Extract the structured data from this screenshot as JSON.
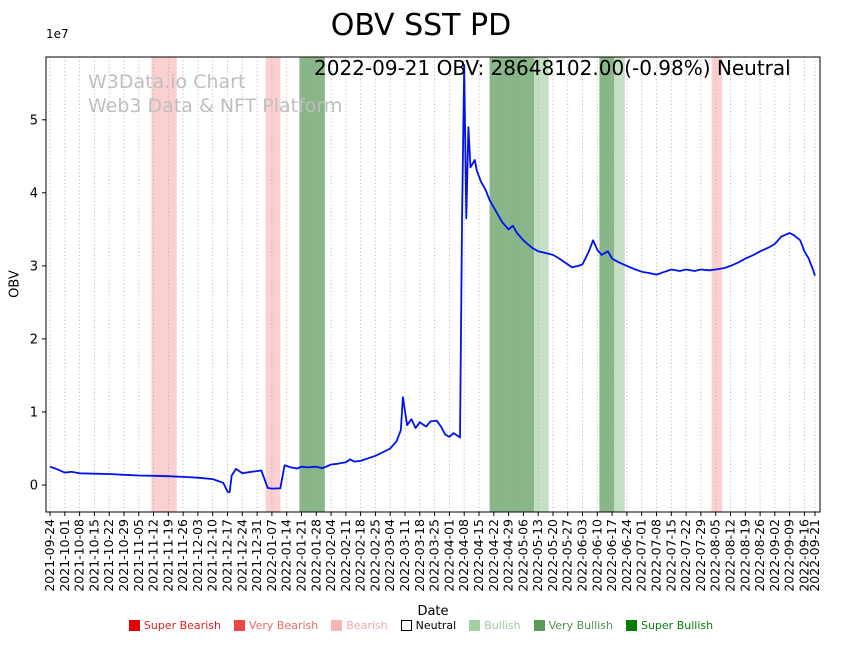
{
  "title": "OBV SST PD",
  "annotation": "2022-09-21 OBV: 28648102.00(-0.98%) Neutral",
  "watermark": {
    "line1": "W3Data.io Chart",
    "line2": "Web3 Data & NFT Platform"
  },
  "axes": {
    "y_label": "OBV",
    "x_label": "Date",
    "y_offset_label": "1e7"
  },
  "chart_data": {
    "type": "line",
    "title": "OBV SST PD",
    "xlabel": "Date",
    "ylabel": "OBV",
    "line_color": "#0013ee",
    "grid": "vertical-dotted",
    "legend_position": "bottom",
    "ylim": [
      -3700000,
      58600000
    ],
    "x_range": [
      "2021-09-24",
      "2022-09-21"
    ],
    "yticks": {
      "values": [
        0,
        10000000,
        20000000,
        30000000,
        40000000,
        50000000
      ],
      "labels": [
        "0",
        "1",
        "2",
        "3",
        "4",
        "5"
      ],
      "offset": "1e7"
    },
    "x_tick_dates": [
      "2021-09-24",
      "2021-10-01",
      "2021-10-08",
      "2021-10-15",
      "2021-10-22",
      "2021-10-29",
      "2021-11-05",
      "2021-11-12",
      "2021-11-19",
      "2021-11-26",
      "2021-12-03",
      "2021-12-10",
      "2021-12-17",
      "2021-12-24",
      "2021-12-31",
      "2022-01-07",
      "2022-01-14",
      "2022-01-21",
      "2022-01-28",
      "2022-02-04",
      "2022-02-11",
      "2022-02-18",
      "2022-02-25",
      "2022-03-04",
      "2022-03-11",
      "2022-03-18",
      "2022-03-25",
      "2022-04-01",
      "2022-04-08",
      "2022-04-15",
      "2022-04-22",
      "2022-04-29",
      "2022-05-06",
      "2022-05-13",
      "2022-05-20",
      "2022-05-27",
      "2022-06-03",
      "2022-06-10",
      "2022-06-17",
      "2022-06-24",
      "2022-07-01",
      "2022-07-08",
      "2022-07-15",
      "2022-07-22",
      "2022-07-29",
      "2022-08-05",
      "2022-08-12",
      "2022-08-19",
      "2022-08-26",
      "2022-09-02",
      "2022-09-09",
      "2022-09-16",
      "2022-09-21"
    ],
    "bands": [
      {
        "start": "2021-11-11",
        "end": "2021-11-23",
        "level": "bearish"
      },
      {
        "start": "2022-01-04",
        "end": "2022-01-11",
        "level": "bearish"
      },
      {
        "start": "2022-01-20",
        "end": "2022-02-01",
        "level": "very_bullish"
      },
      {
        "start": "2022-04-20",
        "end": "2022-05-11",
        "level": "very_bullish"
      },
      {
        "start": "2022-05-11",
        "end": "2022-05-18",
        "level": "bullish"
      },
      {
        "start": "2022-06-11",
        "end": "2022-06-18",
        "level": "very_bullish"
      },
      {
        "start": "2022-06-18",
        "end": "2022-06-23",
        "level": "bullish"
      },
      {
        "start": "2022-08-03",
        "end": "2022-08-08",
        "level": "bearish"
      }
    ],
    "band_colors": {
      "bearish": "rgba(247,150,153,0.45)",
      "bullish": "rgba(125,184,125,0.45)",
      "very_bullish": "rgba(38,122,38,0.55)"
    },
    "series": [
      {
        "name": "OBV",
        "points": [
          [
            "2021-09-24",
            2500000
          ],
          [
            "2021-09-27",
            2200000
          ],
          [
            "2021-10-01",
            1700000
          ],
          [
            "2021-10-04",
            1800000
          ],
          [
            "2021-10-08",
            1600000
          ],
          [
            "2021-10-15",
            1550000
          ],
          [
            "2021-10-22",
            1500000
          ],
          [
            "2021-10-29",
            1400000
          ],
          [
            "2021-11-05",
            1300000
          ],
          [
            "2021-11-12",
            1250000
          ],
          [
            "2021-11-19",
            1200000
          ],
          [
            "2021-11-26",
            1100000
          ],
          [
            "2021-12-03",
            1000000
          ],
          [
            "2021-12-10",
            800000
          ],
          [
            "2021-12-15",
            300000
          ],
          [
            "2021-12-17",
            -900000
          ],
          [
            "2021-12-18",
            -1000000
          ],
          [
            "2021-12-19",
            1300000
          ],
          [
            "2021-12-21",
            2200000
          ],
          [
            "2021-12-24",
            1600000
          ],
          [
            "2021-12-27",
            1750000
          ],
          [
            "2021-12-31",
            1900000
          ],
          [
            "2022-01-02",
            2000000
          ],
          [
            "2022-01-05",
            -400000
          ],
          [
            "2022-01-07",
            -500000
          ],
          [
            "2022-01-11",
            -450000
          ],
          [
            "2022-01-13",
            2700000
          ],
          [
            "2022-01-16",
            2400000
          ],
          [
            "2022-01-19",
            2250000
          ],
          [
            "2022-01-21",
            2500000
          ],
          [
            "2022-01-24",
            2400000
          ],
          [
            "2022-01-28",
            2500000
          ],
          [
            "2022-01-31",
            2300000
          ],
          [
            "2022-02-04",
            2800000
          ],
          [
            "2022-02-07",
            2900000
          ],
          [
            "2022-02-11",
            3100000
          ],
          [
            "2022-02-13",
            3500000
          ],
          [
            "2022-02-15",
            3200000
          ],
          [
            "2022-02-18",
            3300000
          ],
          [
            "2022-02-21",
            3600000
          ],
          [
            "2022-02-25",
            4000000
          ],
          [
            "2022-02-28",
            4400000
          ],
          [
            "2022-03-04",
            5000000
          ],
          [
            "2022-03-07",
            6000000
          ],
          [
            "2022-03-09",
            7500000
          ],
          [
            "2022-03-10",
            12000000
          ],
          [
            "2022-03-12",
            8200000
          ],
          [
            "2022-03-14",
            9000000
          ],
          [
            "2022-03-16",
            7800000
          ],
          [
            "2022-03-18",
            8600000
          ],
          [
            "2022-03-21",
            8000000
          ],
          [
            "2022-03-23",
            8700000
          ],
          [
            "2022-03-26",
            8800000
          ],
          [
            "2022-03-28",
            8000000
          ],
          [
            "2022-03-30",
            6900000
          ],
          [
            "2022-04-01",
            6600000
          ],
          [
            "2022-04-03",
            7100000
          ],
          [
            "2022-04-05",
            6700000
          ],
          [
            "2022-04-06",
            6500000
          ],
          [
            "2022-04-07",
            37000000
          ],
          [
            "2022-04-08",
            57500000
          ],
          [
            "2022-04-09",
            36500000
          ],
          [
            "2022-04-10",
            49000000
          ],
          [
            "2022-04-11",
            43500000
          ],
          [
            "2022-04-13",
            44500000
          ],
          [
            "2022-04-14",
            43000000
          ],
          [
            "2022-04-16",
            41500000
          ],
          [
            "2022-04-18",
            40500000
          ],
          [
            "2022-04-20",
            39000000
          ],
          [
            "2022-04-22",
            38000000
          ],
          [
            "2022-04-24",
            37000000
          ],
          [
            "2022-04-26",
            36000000
          ],
          [
            "2022-04-29",
            35000000
          ],
          [
            "2022-05-01",
            35500000
          ],
          [
            "2022-05-03",
            34500000
          ],
          [
            "2022-05-06",
            33500000
          ],
          [
            "2022-05-08",
            33000000
          ],
          [
            "2022-05-10",
            32500000
          ],
          [
            "2022-05-13",
            32000000
          ],
          [
            "2022-05-16",
            31800000
          ],
          [
            "2022-05-20",
            31500000
          ],
          [
            "2022-05-23",
            31000000
          ],
          [
            "2022-05-27",
            30200000
          ],
          [
            "2022-05-29",
            29800000
          ],
          [
            "2022-06-01",
            30000000
          ],
          [
            "2022-06-03",
            30200000
          ],
          [
            "2022-06-06",
            32000000
          ],
          [
            "2022-06-08",
            33500000
          ],
          [
            "2022-06-10",
            32200000
          ],
          [
            "2022-06-12",
            31500000
          ],
          [
            "2022-06-15",
            32000000
          ],
          [
            "2022-06-17",
            31000000
          ],
          [
            "2022-06-20",
            30500000
          ],
          [
            "2022-06-24",
            30000000
          ],
          [
            "2022-06-28",
            29500000
          ],
          [
            "2022-07-01",
            29200000
          ],
          [
            "2022-07-05",
            29000000
          ],
          [
            "2022-07-08",
            28800000
          ],
          [
            "2022-07-12",
            29200000
          ],
          [
            "2022-07-15",
            29500000
          ],
          [
            "2022-07-19",
            29300000
          ],
          [
            "2022-07-22",
            29500000
          ],
          [
            "2022-07-26",
            29300000
          ],
          [
            "2022-07-29",
            29500000
          ],
          [
            "2022-08-02",
            29400000
          ],
          [
            "2022-08-05",
            29500000
          ],
          [
            "2022-08-09",
            29700000
          ],
          [
            "2022-08-12",
            30000000
          ],
          [
            "2022-08-16",
            30500000
          ],
          [
            "2022-08-19",
            31000000
          ],
          [
            "2022-08-23",
            31500000
          ],
          [
            "2022-08-26",
            32000000
          ],
          [
            "2022-08-30",
            32500000
          ],
          [
            "2022-09-02",
            33000000
          ],
          [
            "2022-09-05",
            34000000
          ],
          [
            "2022-09-09",
            34500000
          ],
          [
            "2022-09-11",
            34200000
          ],
          [
            "2022-09-14",
            33500000
          ],
          [
            "2022-09-16",
            32000000
          ],
          [
            "2022-09-18",
            31000000
          ],
          [
            "2022-09-20",
            29500000
          ],
          [
            "2022-09-21",
            28648102
          ]
        ]
      }
    ]
  },
  "legend": {
    "items": [
      {
        "label": "Super Bearish",
        "swatch": "#e60000",
        "text_color": "#e02020"
      },
      {
        "label": "Very Bearish",
        "swatch": "#ef4646",
        "text_color": "#e96a6a"
      },
      {
        "label": "Bearish",
        "swatch": "#f9b4b6",
        "text_color": "#efa8aa"
      },
      {
        "label": "Neutral",
        "swatch": "#ffffff",
        "text_color": "#000000",
        "border": "#000000"
      },
      {
        "label": "Bullish",
        "swatch": "#a7cfa7",
        "text_color": "#a2c9a2"
      },
      {
        "label": "Very Bullish",
        "swatch": "#5d9b5d",
        "text_color": "#4f8f4f"
      },
      {
        "label": "Super Bullish",
        "swatch": "#008000",
        "text_color": "#067d06"
      }
    ]
  }
}
